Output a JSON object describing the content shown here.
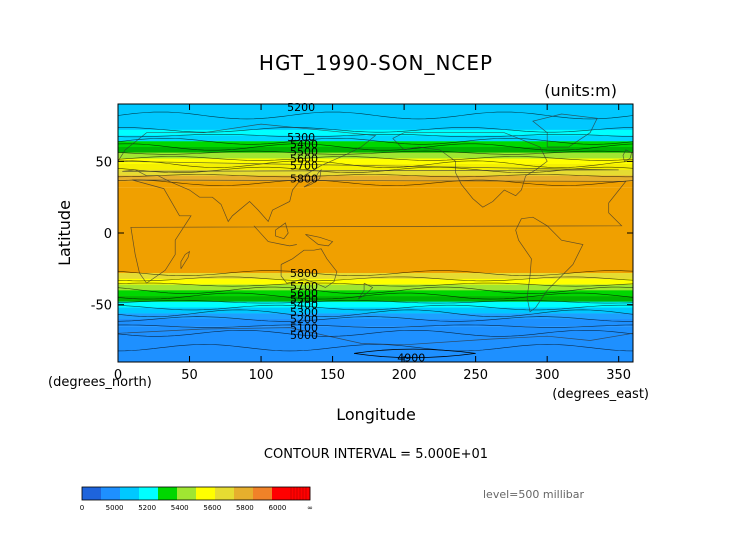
{
  "chart_data": {
    "type": "heatmap",
    "title": "HGT_1990-SON_NCEP",
    "units_label": "(units:m)",
    "xlabel": "Longitude",
    "ylabel": "Latitude",
    "x_unit_label": "(degrees_east)",
    "y_unit_label": "(degrees_north)",
    "xlim": [
      0,
      360
    ],
    "ylim": [
      -90,
      90
    ],
    "x_ticks": [
      "0",
      "50",
      "100",
      "150",
      "200",
      "250",
      "300",
      "350"
    ],
    "x_tick_values": [
      0,
      50,
      100,
      150,
      200,
      250,
      300,
      350
    ],
    "y_ticks": [
      "50",
      "0",
      "-50"
    ],
    "y_tick_values": [
      50,
      0,
      -50
    ],
    "contour_interval_text": "CONTOUR INTERVAL = 5.000E+01",
    "level_text": "level=500 millibar",
    "zonal_bands": [
      {
        "lat_from": 90,
        "lat_to": 70,
        "value": 5250
      },
      {
        "lat_from": 70,
        "lat_to": 60,
        "value": 5350
      },
      {
        "lat_from": 60,
        "lat_to": 52,
        "value": 5500
      },
      {
        "lat_from": 52,
        "lat_to": 40,
        "value": 5700
      },
      {
        "lat_from": 40,
        "lat_to": 32,
        "value": 5850
      },
      {
        "lat_from": 32,
        "lat_to": -28,
        "value": 5900
      },
      {
        "lat_from": -28,
        "lat_to": -37,
        "value": 5700
      },
      {
        "lat_from": -37,
        "lat_to": -47,
        "value": 5500
      },
      {
        "lat_from": -47,
        "lat_to": -57,
        "value": 5350
      },
      {
        "lat_from": -57,
        "lat_to": -65,
        "value": 5200
      },
      {
        "lat_from": -65,
        "lat_to": -90,
        "value": 5050
      }
    ],
    "contour_labels": [
      {
        "text": "5200",
        "lon": 128,
        "lat": 88
      },
      {
        "text": "5300",
        "lon": 128,
        "lat": 67
      },
      {
        "text": "5400",
        "lon": 130,
        "lat": 62
      },
      {
        "text": "5500",
        "lon": 130,
        "lat": 57
      },
      {
        "text": "5600",
        "lon": 130,
        "lat": 52
      },
      {
        "text": "5700",
        "lon": 130,
        "lat": 47
      },
      {
        "text": "5800",
        "lon": 130,
        "lat": 38
      },
      {
        "text": "5800",
        "lon": 130,
        "lat": -28
      },
      {
        "text": "5700",
        "lon": 130,
        "lat": -37
      },
      {
        "text": "5600",
        "lon": 130,
        "lat": -42
      },
      {
        "text": "5500",
        "lon": 130,
        "lat": -46
      },
      {
        "text": "5400",
        "lon": 130,
        "lat": -50
      },
      {
        "text": "5300",
        "lon": 130,
        "lat": -55
      },
      {
        "text": "5200",
        "lon": 130,
        "lat": -60
      },
      {
        "text": "5100",
        "lon": 130,
        "lat": -66
      },
      {
        "text": "5000",
        "lon": 130,
        "lat": -71
      },
      {
        "text": "4900",
        "lon": 205,
        "lat": -87
      }
    ],
    "colorbar": {
      "labels": [
        "0",
        "5000",
        "5200",
        "5400",
        "5600",
        "5800",
        "6000",
        "∞"
      ],
      "colors": [
        "#1e64dc",
        "#1e90ff",
        "#00c8ff",
        "#00ffff",
        "#00d700",
        "#a0e632",
        "#ffff00",
        "#e6dc32",
        "#e6af2d",
        "#f08228",
        "#ff0000",
        "#ff0000"
      ]
    },
    "colors": {
      "lvl_lt5000": "#1e64dc",
      "lvl_5000": "#1e90ff",
      "lvl_5200": "#00c8ff",
      "lvl_5300": "#00ffff",
      "lvl_5400": "#00d700",
      "lvl_5500": "#a0e632",
      "lvl_5600": "#ffff00",
      "lvl_5700": "#e6dc32",
      "lvl_5800": "#e6af2d",
      "lvl_5850": "#f0a000",
      "lvl_5900": "#f0a000"
    }
  }
}
